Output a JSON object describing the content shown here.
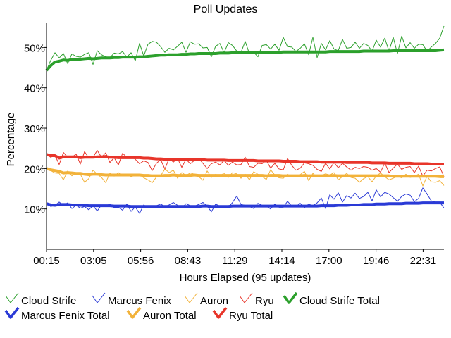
{
  "chart_data": {
    "type": "line",
    "title": "Poll Updates",
    "xlabel": "Hours Elapsed (95 updates)",
    "ylabel": "Percentage",
    "x_ticks": [
      "00:15",
      "03:05",
      "05:56",
      "08:43",
      "11:29",
      "14:14",
      "17:00",
      "19:46",
      "22:31"
    ],
    "y_ticks": [
      "10%",
      "20%",
      "30%",
      "40%",
      "50%"
    ],
    "xlim": [
      0,
      95
    ],
    "ylim": [
      0,
      0.56
    ],
    "grid": false,
    "legend_position": "bottom",
    "series": [
      {
        "name": "Cloud Strife",
        "color": "#2ca02c",
        "style": "thin",
        "values": [
          0.443,
          0.468,
          0.487,
          0.474,
          0.485,
          0.46,
          0.484,
          0.478,
          0.476,
          0.483,
          0.487,
          0.458,
          0.492,
          0.482,
          0.477,
          0.475,
          0.486,
          0.484,
          0.49,
          0.476,
          0.487,
          0.467,
          0.51,
          0.479,
          0.508,
          0.515,
          0.513,
          0.502,
          0.488,
          0.498,
          0.494,
          0.503,
          0.513,
          0.488,
          0.514,
          0.508,
          0.509,
          0.499,
          0.5,
          0.477,
          0.503,
          0.51,
          0.487,
          0.512,
          0.505,
          0.491,
          0.488,
          0.515,
          0.484,
          0.488,
          0.477,
          0.505,
          0.507,
          0.496,
          0.508,
          0.493,
          0.525,
          0.502,
          0.501,
          0.49,
          0.498,
          0.509,
          0.482,
          0.525,
          0.475,
          0.51,
          0.494,
          0.517,
          0.496,
          0.492,
          0.52,
          0.498,
          0.5,
          0.513,
          0.498,
          0.51,
          0.505,
          0.491,
          0.518,
          0.501,
          0.523,
          0.491,
          0.525,
          0.485,
          0.528,
          0.499,
          0.512,
          0.498,
          0.508,
          0.507,
          0.491,
          0.501,
          0.51,
          0.523,
          0.553
        ]
      },
      {
        "name": "Marcus Fenix",
        "color": "#2a3ad6",
        "style": "thin",
        "values": [
          0.113,
          0.106,
          0.109,
          0.117,
          0.109,
          0.115,
          0.101,
          0.109,
          0.102,
          0.106,
          0.098,
          0.108,
          0.095,
          0.11,
          0.108,
          0.112,
          0.103,
          0.104,
          0.097,
          0.112,
          0.094,
          0.105,
          0.089,
          0.11,
          0.102,
          0.104,
          0.108,
          0.112,
          0.106,
          0.11,
          0.116,
          0.109,
          0.102,
          0.113,
          0.108,
          0.107,
          0.111,
          0.116,
          0.107,
          0.093,
          0.112,
          0.107,
          0.108,
          0.104,
          0.116,
          0.132,
          0.111,
          0.109,
          0.106,
          0.101,
          0.114,
          0.109,
          0.107,
          0.1,
          0.112,
          0.104,
          0.104,
          0.119,
          0.107,
          0.106,
          0.114,
          0.103,
          0.112,
          0.108,
          0.115,
          0.127,
          0.101,
          0.135,
          0.124,
          0.14,
          0.117,
          0.133,
          0.127,
          0.139,
          0.126,
          0.131,
          0.141,
          0.12,
          0.147,
          0.13,
          0.141,
          0.137,
          0.128,
          0.119,
          0.131,
          0.137,
          0.134,
          0.118,
          0.126,
          0.152,
          0.137,
          0.12,
          0.117,
          0.117,
          0.102
        ]
      },
      {
        "name": "Auron",
        "color": "#f2b23a",
        "style": "thin",
        "values": [
          0.2,
          0.195,
          0.189,
          0.188,
          0.172,
          0.194,
          0.182,
          0.188,
          0.186,
          0.166,
          0.175,
          0.196,
          0.186,
          0.178,
          0.165,
          0.189,
          0.181,
          0.19,
          0.182,
          0.186,
          0.18,
          0.183,
          0.185,
          0.177,
          0.172,
          0.165,
          0.179,
          0.182,
          0.199,
          0.19,
          0.196,
          0.176,
          0.19,
          0.183,
          0.189,
          0.186,
          0.18,
          0.171,
          0.194,
          0.178,
          0.186,
          0.181,
          0.189,
          0.178,
          0.19,
          0.187,
          0.176,
          0.186,
          0.172,
          0.192,
          0.186,
          0.18,
          0.173,
          0.197,
          0.184,
          0.177,
          0.176,
          0.186,
          0.18,
          0.181,
          0.185,
          0.193,
          0.17,
          0.188,
          0.179,
          0.183,
          0.187,
          0.184,
          0.19,
          0.172,
          0.18,
          0.188,
          0.178,
          0.176,
          0.166,
          0.175,
          0.18,
          0.167,
          0.182,
          0.189,
          0.18,
          0.172,
          0.176,
          0.181,
          0.177,
          0.186,
          0.178,
          0.181,
          0.186,
          0.157,
          0.181,
          0.167,
          0.166,
          0.17,
          0.158
        ]
      },
      {
        "name": "Ryu",
        "color": "#e8352a",
        "style": "thin",
        "values": [
          0.235,
          0.228,
          0.233,
          0.21,
          0.24,
          0.228,
          0.228,
          0.236,
          0.211,
          0.242,
          0.226,
          0.228,
          0.245,
          0.228,
          0.239,
          0.215,
          0.227,
          0.209,
          0.238,
          0.228,
          0.231,
          0.223,
          0.212,
          0.219,
          0.215,
          0.195,
          0.213,
          0.222,
          0.199,
          0.225,
          0.216,
          0.225,
          0.203,
          0.223,
          0.212,
          0.22,
          0.225,
          0.213,
          0.2,
          0.212,
          0.216,
          0.209,
          0.22,
          0.208,
          0.216,
          0.209,
          0.21,
          0.228,
          0.205,
          0.203,
          0.213,
          0.212,
          0.22,
          0.201,
          0.213,
          0.199,
          0.197,
          0.225,
          0.208,
          0.196,
          0.201,
          0.214,
          0.212,
          0.208,
          0.198,
          0.193,
          0.213,
          0.199,
          0.215,
          0.202,
          0.213,
          0.204,
          0.196,
          0.203,
          0.2,
          0.205,
          0.203,
          0.196,
          0.2,
          0.191,
          0.214,
          0.19,
          0.201,
          0.211,
          0.198,
          0.203,
          0.205,
          0.19,
          0.206,
          0.181,
          0.196,
          0.194,
          0.2,
          0.204,
          0.18
        ]
      },
      {
        "name": "Cloud Strife Total",
        "color": "#2ca02c",
        "style": "thick",
        "values": [
          0.443,
          0.455,
          0.464,
          0.466,
          0.469,
          0.468,
          0.47,
          0.47,
          0.471,
          0.472,
          0.473,
          0.472,
          0.473,
          0.474,
          0.474,
          0.474,
          0.475,
          0.475,
          0.476,
          0.476,
          0.476,
          0.476,
          0.477,
          0.477,
          0.478,
          0.479,
          0.48,
          0.481,
          0.481,
          0.482,
          0.482,
          0.482,
          0.483,
          0.483,
          0.484,
          0.484,
          0.485,
          0.485,
          0.485,
          0.485,
          0.485,
          0.486,
          0.486,
          0.486,
          0.487,
          0.487,
          0.487,
          0.487,
          0.487,
          0.487,
          0.487,
          0.487,
          0.488,
          0.488,
          0.488,
          0.488,
          0.489,
          0.489,
          0.489,
          0.489,
          0.489,
          0.489,
          0.489,
          0.489,
          0.489,
          0.489,
          0.489,
          0.49,
          0.49,
          0.49,
          0.49,
          0.49,
          0.49,
          0.49,
          0.49,
          0.491,
          0.491,
          0.491,
          0.491,
          0.491,
          0.491,
          0.491,
          0.492,
          0.492,
          0.492,
          0.492,
          0.492,
          0.492,
          0.492,
          0.492,
          0.492,
          0.492,
          0.492,
          0.493,
          0.494
        ]
      },
      {
        "name": "Marcus Fenix Total",
        "color": "#2a3ad6",
        "style": "thick",
        "values": [
          0.113,
          0.11,
          0.109,
          0.111,
          0.111,
          0.111,
          0.11,
          0.11,
          0.109,
          0.109,
          0.108,
          0.108,
          0.108,
          0.108,
          0.108,
          0.108,
          0.107,
          0.107,
          0.107,
          0.107,
          0.106,
          0.106,
          0.106,
          0.106,
          0.106,
          0.106,
          0.106,
          0.106,
          0.106,
          0.106,
          0.106,
          0.106,
          0.106,
          0.106,
          0.106,
          0.106,
          0.106,
          0.107,
          0.107,
          0.106,
          0.106,
          0.106,
          0.106,
          0.106,
          0.107,
          0.107,
          0.107,
          0.107,
          0.107,
          0.107,
          0.107,
          0.107,
          0.107,
          0.107,
          0.107,
          0.107,
          0.107,
          0.107,
          0.107,
          0.107,
          0.107,
          0.107,
          0.107,
          0.107,
          0.107,
          0.108,
          0.108,
          0.108,
          0.108,
          0.109,
          0.109,
          0.109,
          0.11,
          0.11,
          0.11,
          0.111,
          0.111,
          0.111,
          0.112,
          0.112,
          0.112,
          0.113,
          0.113,
          0.113,
          0.113,
          0.114,
          0.114,
          0.114,
          0.114,
          0.115,
          0.115,
          0.115,
          0.115,
          0.115,
          0.115
        ]
      },
      {
        "name": "Auron Total",
        "color": "#f2b23a",
        "style": "thick",
        "values": [
          0.2,
          0.197,
          0.195,
          0.193,
          0.189,
          0.19,
          0.189,
          0.188,
          0.188,
          0.186,
          0.185,
          0.186,
          0.186,
          0.185,
          0.184,
          0.184,
          0.184,
          0.184,
          0.184,
          0.184,
          0.184,
          0.184,
          0.184,
          0.183,
          0.183,
          0.182,
          0.182,
          0.182,
          0.183,
          0.183,
          0.184,
          0.183,
          0.183,
          0.183,
          0.183,
          0.184,
          0.183,
          0.183,
          0.183,
          0.183,
          0.183,
          0.183,
          0.183,
          0.183,
          0.183,
          0.183,
          0.183,
          0.183,
          0.183,
          0.183,
          0.183,
          0.183,
          0.182,
          0.183,
          0.183,
          0.183,
          0.182,
          0.182,
          0.182,
          0.182,
          0.182,
          0.183,
          0.182,
          0.182,
          0.182,
          0.182,
          0.182,
          0.182,
          0.183,
          0.182,
          0.182,
          0.182,
          0.182,
          0.182,
          0.182,
          0.182,
          0.182,
          0.182,
          0.182,
          0.182,
          0.182,
          0.182,
          0.181,
          0.181,
          0.181,
          0.181,
          0.181,
          0.181,
          0.181,
          0.181,
          0.181,
          0.181,
          0.181,
          0.18,
          0.18
        ]
      },
      {
        "name": "Ryu Total",
        "color": "#e8352a",
        "style": "thick",
        "values": [
          0.235,
          0.232,
          0.232,
          0.226,
          0.229,
          0.229,
          0.229,
          0.229,
          0.227,
          0.228,
          0.228,
          0.228,
          0.229,
          0.229,
          0.23,
          0.228,
          0.228,
          0.227,
          0.227,
          0.227,
          0.227,
          0.227,
          0.227,
          0.226,
          0.226,
          0.225,
          0.224,
          0.224,
          0.223,
          0.223,
          0.223,
          0.223,
          0.222,
          0.222,
          0.222,
          0.222,
          0.222,
          0.222,
          0.221,
          0.221,
          0.221,
          0.221,
          0.221,
          0.22,
          0.22,
          0.22,
          0.22,
          0.22,
          0.22,
          0.22,
          0.219,
          0.219,
          0.219,
          0.219,
          0.219,
          0.219,
          0.218,
          0.218,
          0.218,
          0.218,
          0.217,
          0.217,
          0.217,
          0.217,
          0.217,
          0.216,
          0.216,
          0.216,
          0.216,
          0.216,
          0.216,
          0.215,
          0.215,
          0.215,
          0.215,
          0.215,
          0.215,
          0.214,
          0.214,
          0.214,
          0.214,
          0.213,
          0.213,
          0.213,
          0.213,
          0.213,
          0.213,
          0.212,
          0.212,
          0.212,
          0.212,
          0.211,
          0.211,
          0.211,
          0.211
        ]
      }
    ]
  }
}
